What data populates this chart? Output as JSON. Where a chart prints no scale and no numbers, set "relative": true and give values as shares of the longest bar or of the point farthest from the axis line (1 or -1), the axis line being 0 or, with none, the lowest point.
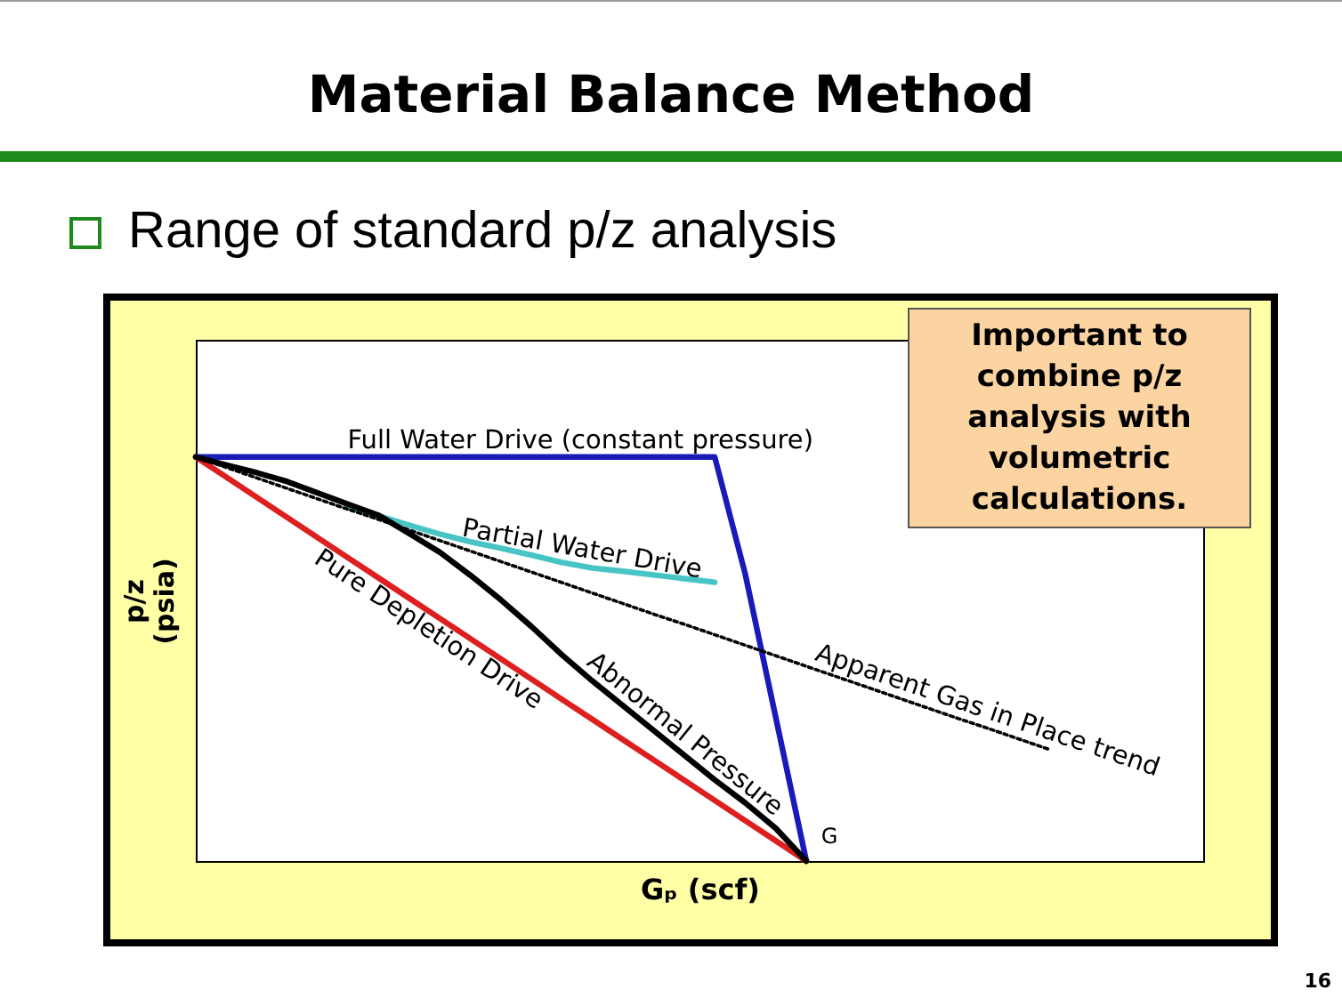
{
  "chart_data": {
    "type": "line",
    "title": "Material Balance Method",
    "subtitle": "Range of standard p/z analysis",
    "xlabel": "Gₚ (scf)",
    "ylabel": "p/z (psia)",
    "relative": true,
    "categories": [
      null,
      null,
      null,
      null,
      null,
      null,
      null,
      null,
      null,
      null,
      null,
      null,
      null,
      null,
      null,
      null,
      null,
      null,
      null,
      null,
      null,
      null,
      null,
      null,
      null,
      null,
      null,
      null,
      null,
      null,
      null,
      null,
      null,
      null
    ],
    "series": [
      {
        "name": "Full Water Drive (constant pressure)",
        "color": "#1a1ab8",
        "values": [
          1,
          1,
          1,
          1,
          1,
          1,
          1,
          1,
          1,
          1,
          1,
          1,
          1,
          1,
          1,
          1,
          1,
          1,
          0.71,
          0.355,
          0,
          null,
          null,
          null,
          null,
          null,
          null,
          null,
          null,
          null,
          null,
          null,
          null,
          null
        ]
      },
      {
        "name": "Partial Water Drive",
        "color": "#48c4c4",
        "values": [
          null,
          null,
          null,
          null,
          null,
          0.877,
          0.854,
          0.831,
          0.809,
          0.79,
          0.774,
          0.757,
          0.739,
          0.725,
          0.717,
          0.708,
          0.699,
          0.69,
          null,
          null,
          null,
          null,
          null,
          null,
          null,
          null,
          null,
          null,
          null,
          null,
          null,
          null,
          null,
          null
        ]
      },
      {
        "name": "Pure Depletion Drive",
        "color": "#dd1f1f",
        "values": [
          1,
          0.95,
          0.9,
          0.85,
          0.8,
          0.75,
          0.7,
          0.65,
          0.6,
          0.55,
          0.5,
          0.45,
          0.4,
          0.35,
          0.3,
          0.25,
          0.2,
          0.15,
          0.1,
          0.05,
          0,
          null,
          null,
          null,
          null,
          null,
          null,
          null,
          null,
          null,
          null,
          null,
          null,
          null
        ]
      },
      {
        "name": "Abnormal Pressure",
        "color": "#000000",
        "values": [
          1,
          0.98,
          0.961,
          0.939,
          0.911,
          0.883,
          0.855,
          0.81,
          0.764,
          0.707,
          0.646,
          0.58,
          0.51,
          0.445,
          0.384,
          0.323,
          0.262,
          0.201,
          0.144,
          0.081,
          0,
          null,
          null,
          null,
          null,
          null,
          null,
          null,
          null,
          null,
          null,
          null,
          null,
          null
        ]
      },
      {
        "name": "Apparent Gas in Place trend",
        "color": "#000000",
        "line_style": "dotted",
        "values": [
          1,
          0.974,
          0.948,
          0.922,
          0.896,
          0.87,
          0.845,
          0.819,
          0.793,
          0.767,
          0.741,
          0.715,
          0.689,
          0.663,
          0.637,
          0.611,
          0.586,
          0.56,
          0.534,
          0.508,
          0.482,
          0.456,
          0.43,
          0.404,
          0.378,
          0.352,
          0.327,
          0.301,
          0.275,
          null,
          null,
          null,
          null,
          null
        ]
      }
    ],
    "annotations": [
      "G",
      "Important to combine p/z analysis with volumetric calculations.",
      "16"
    ]
  }
}
